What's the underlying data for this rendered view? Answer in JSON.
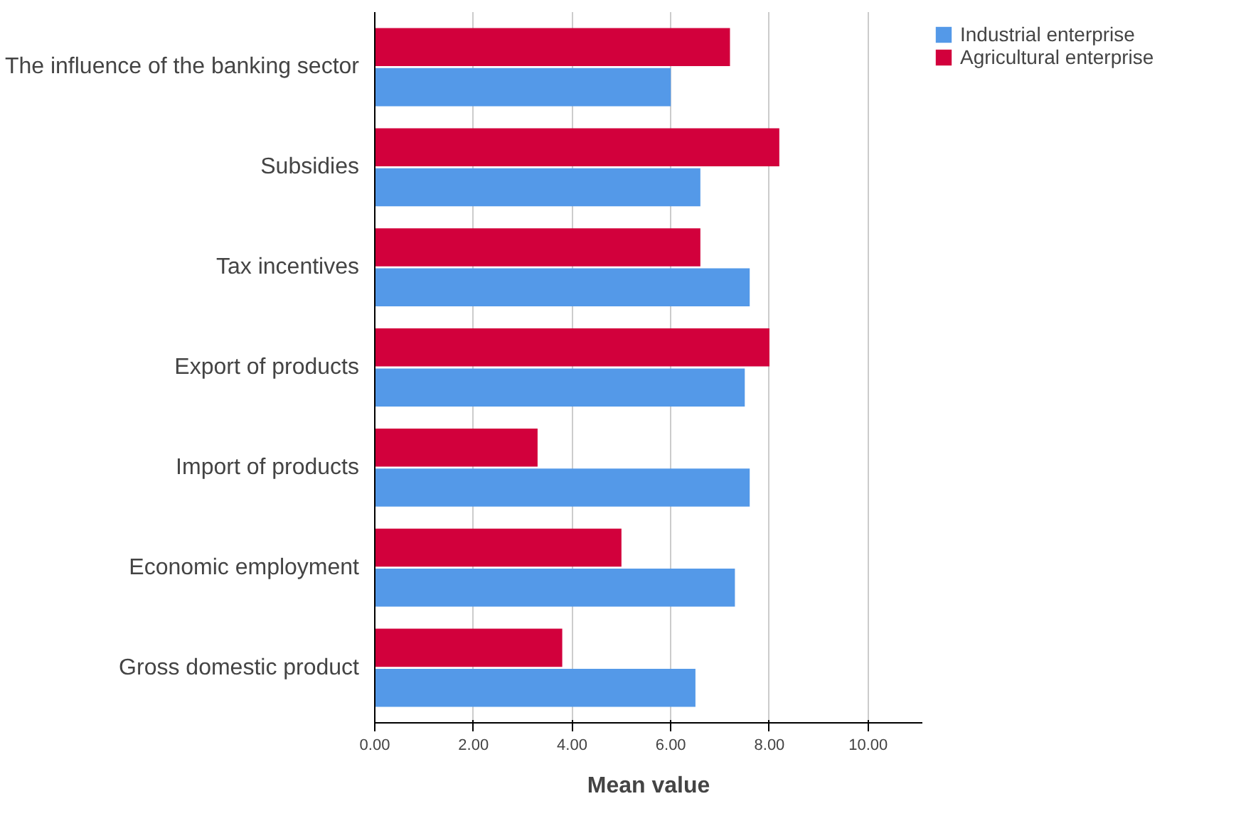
{
  "chart_data": {
    "type": "bar",
    "orientation": "horizontal",
    "xlabel": "Mean value",
    "categories": [
      "The influence of the banking sector",
      "Subsidies",
      "Tax incentives",
      "Export of products",
      "Import of products",
      "Economic employment",
      "Gross domestic product"
    ],
    "series": [
      {
        "name": "Industrial enterprise",
        "color": "#5499e8",
        "values": [
          6.0,
          6.6,
          7.6,
          7.5,
          7.6,
          7.3,
          6.5
        ]
      },
      {
        "name": "Agricultural enterprise",
        "color": "#d2003c",
        "values": [
          7.2,
          8.2,
          6.6,
          8.0,
          3.3,
          5.0,
          3.8
        ]
      }
    ],
    "xlim": [
      0,
      11.1
    ],
    "xticks": [
      {
        "value": 0,
        "label": "0.00"
      },
      {
        "value": 2,
        "label": "2.00"
      },
      {
        "value": 4,
        "label": "4.00"
      },
      {
        "value": 6,
        "label": "6.00"
      },
      {
        "value": 8,
        "label": "8.00"
      },
      {
        "value": 10,
        "label": "10.00"
      }
    ],
    "grid": "x",
    "legend": "top right"
  }
}
